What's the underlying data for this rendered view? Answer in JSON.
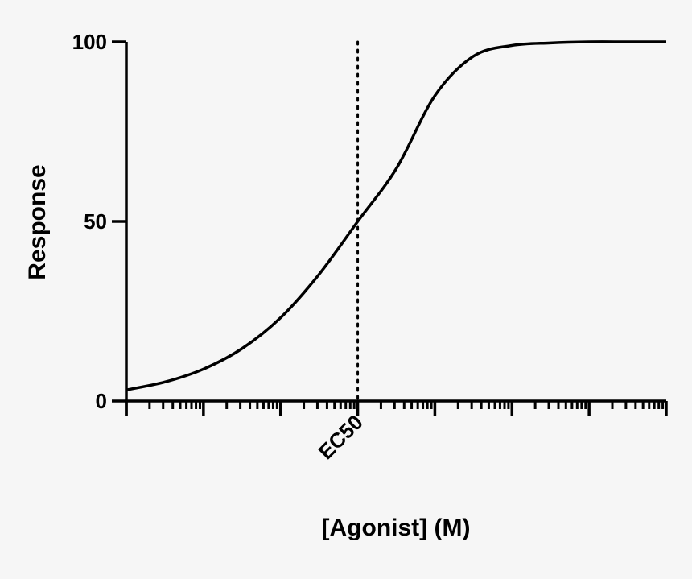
{
  "chart_data": {
    "type": "line",
    "xlabel": "[Agonist]  (M)",
    "ylabel": "Response",
    "x_scale": "log",
    "x_ticklabels": [
      {
        "x": 0,
        "label": "EC50"
      }
    ],
    "xlim": [
      -3,
      4
    ],
    "ylim": [
      0,
      100
    ],
    "yticks": [
      0,
      50,
      100
    ],
    "ytick_labels": [
      "0",
      "50",
      "100"
    ],
    "series": [
      {
        "style": "solid",
        "color": "#000000",
        "x": [
          -3,
          -2.5,
          -2,
          -1.5,
          -1,
          -0.5,
          0,
          0.5,
          1,
          1.5,
          2,
          2.5,
          3,
          3.5,
          4
        ],
        "y": [
          3.1,
          5.3,
          8.9,
          14.6,
          23.2,
          35.3,
          50,
          64.7,
          85,
          96,
          99,
          99.7,
          100,
          100,
          100
        ]
      }
    ],
    "reference_lines": [
      {
        "orientation": "vertical",
        "x": 0,
        "style": "dotted",
        "label": "EC50"
      }
    ],
    "grid": false,
    "legend": "none"
  }
}
